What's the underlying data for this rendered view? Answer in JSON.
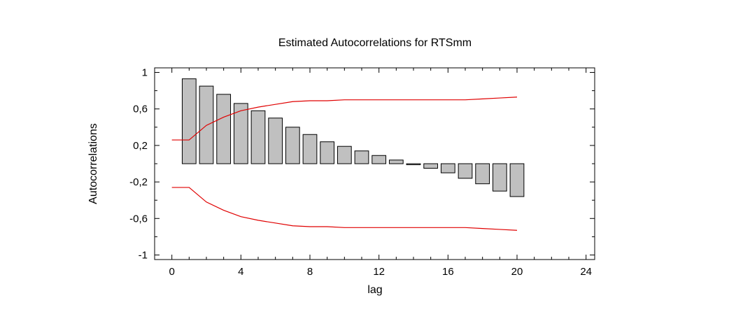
{
  "chart_data": {
    "type": "bar",
    "title": "Estimated Autocorrelations for RTSmm",
    "xlabel": "lag",
    "ylabel": "Autocorrelations",
    "xlim": [
      -1,
      24.5
    ],
    "ylim": [
      -1.05,
      1.05
    ],
    "x_ticks": [
      0,
      4,
      8,
      12,
      16,
      20,
      24
    ],
    "x_tick_labels": [
      "0",
      "4",
      "8",
      "12",
      "16",
      "20",
      "24"
    ],
    "y_ticks": [
      1,
      0.6,
      0.2,
      -0.2,
      -0.6,
      -1
    ],
    "y_tick_labels": [
      "1",
      "0,6",
      "0,2",
      "-0,2",
      "-0,6",
      "-1"
    ],
    "grid": false,
    "bar_color": "#c0c0c0",
    "bar_edge_color": "#000000",
    "limit_color": "#e00000",
    "lags": [
      1,
      2,
      3,
      4,
      5,
      6,
      7,
      8,
      9,
      10,
      11,
      12,
      13,
      14,
      15,
      16,
      17,
      18,
      19,
      20
    ],
    "values": [
      0.93,
      0.85,
      0.76,
      0.66,
      0.58,
      0.5,
      0.4,
      0.32,
      0.24,
      0.19,
      0.14,
      0.09,
      0.04,
      0.0,
      -0.05,
      -0.1,
      -0.16,
      -0.22,
      -0.3,
      -0.36
    ],
    "series": [
      {
        "lags": [
          0,
          1,
          2,
          3,
          4,
          5,
          6,
          7,
          8,
          9,
          10,
          11,
          12,
          13,
          14,
          15,
          16,
          17,
          18,
          19,
          20
        ],
        "values": [
          0.26,
          0.26,
          0.42,
          0.51,
          0.58,
          0.62,
          0.65,
          0.68,
          0.69,
          0.69,
          0.7,
          0.7,
          0.7,
          0.7,
          0.7,
          0.7,
          0.7,
          0.7,
          0.71,
          0.72,
          0.73
        ]
      },
      {
        "lags": [
          0,
          1,
          2,
          3,
          4,
          5,
          6,
          7,
          8,
          9,
          10,
          11,
          12,
          13,
          14,
          15,
          16,
          17,
          18,
          19,
          20
        ],
        "values": [
          -0.26,
          -0.26,
          -0.42,
          -0.51,
          -0.58,
          -0.62,
          -0.65,
          -0.68,
          -0.69,
          -0.69,
          -0.7,
          -0.7,
          -0.7,
          -0.7,
          -0.7,
          -0.7,
          -0.7,
          -0.7,
          -0.71,
          -0.72,
          -0.73
        ]
      }
    ]
  }
}
